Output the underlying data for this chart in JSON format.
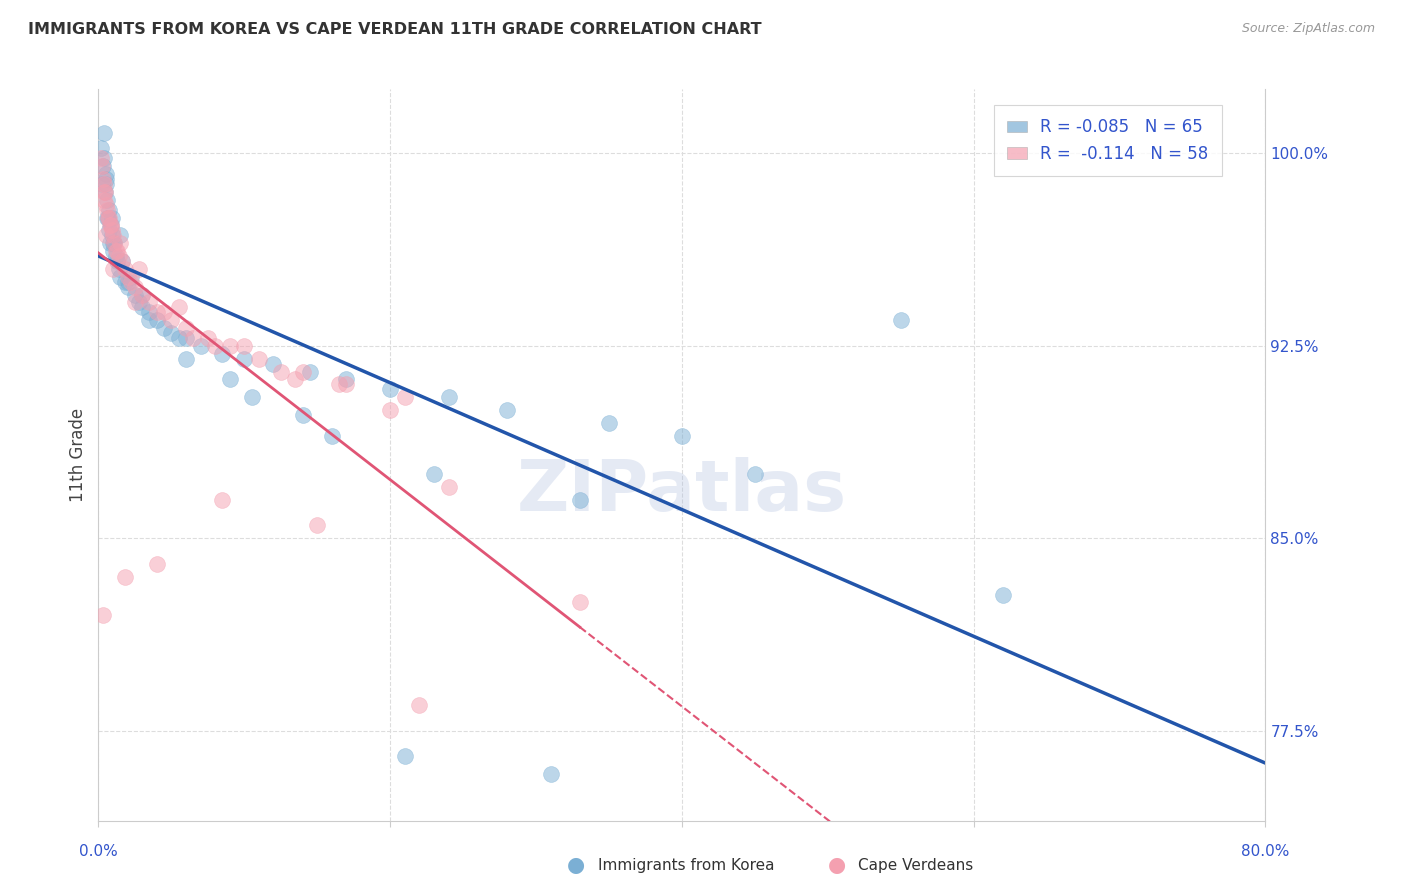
{
  "title": "IMMIGRANTS FROM KOREA VS CAPE VERDEAN 11TH GRADE CORRELATION CHART",
  "source": "Source: ZipAtlas.com",
  "ylabel": "11th Grade",
  "xlim": [
    0.0,
    80.0
  ],
  "ylim": [
    74.0,
    102.5
  ],
  "ytick_positions": [
    77.5,
    85.0,
    92.5,
    100.0
  ],
  "ytick_labels": [
    "77.5%",
    "85.0%",
    "92.5%",
    "100.0%"
  ],
  "legend_label1": "Immigrants from Korea",
  "legend_label2": "Cape Verdeans",
  "blue_color": "#7BAFD4",
  "pink_color": "#F4A0B0",
  "blue_line_color": "#2255AA",
  "pink_line_color": "#E05575",
  "text_color": "#3355CC",
  "watermark_text": "ZIPatlas",
  "blue_scatter_x": [
    0.2,
    0.3,
    0.35,
    0.4,
    0.45,
    0.5,
    0.55,
    0.6,
    0.65,
    0.7,
    0.75,
    0.8,
    0.85,
    0.9,
    0.95,
    1.0,
    1.1,
    1.2,
    1.3,
    1.4,
    1.5,
    1.6,
    1.8,
    2.0,
    2.2,
    2.5,
    2.8,
    3.0,
    3.5,
    4.0,
    4.5,
    5.0,
    6.0,
    7.0,
    8.5,
    10.0,
    12.0,
    14.5,
    17.0,
    20.0,
    24.0,
    28.0,
    35.0,
    40.0,
    45.0,
    55.0,
    62.0,
    0.25,
    0.6,
    1.0,
    2.0,
    3.5,
    6.0,
    10.5,
    16.0,
    23.0,
    33.0,
    0.5,
    1.5,
    3.0,
    5.5,
    9.0,
    14.0,
    21.0,
    31.0
  ],
  "blue_scatter_y": [
    100.2,
    99.5,
    100.8,
    99.8,
    98.5,
    99.2,
    98.8,
    98.2,
    97.5,
    97.8,
    97.0,
    96.5,
    97.2,
    96.8,
    97.5,
    96.2,
    96.5,
    96.0,
    95.8,
    95.5,
    95.2,
    95.8,
    95.0,
    94.8,
    95.2,
    94.5,
    94.2,
    94.0,
    93.8,
    93.5,
    93.2,
    93.0,
    92.8,
    92.5,
    92.2,
    92.0,
    91.8,
    91.5,
    91.2,
    90.8,
    90.5,
    90.0,
    89.5,
    89.0,
    87.5,
    93.5,
    82.8,
    98.8,
    97.5,
    96.5,
    95.0,
    93.5,
    92.0,
    90.5,
    89.0,
    87.5,
    86.5,
    99.0,
    96.8,
    94.5,
    92.8,
    91.2,
    89.8,
    76.5,
    75.8
  ],
  "pink_scatter_x": [
    0.2,
    0.25,
    0.3,
    0.4,
    0.45,
    0.5,
    0.6,
    0.7,
    0.8,
    0.9,
    1.0,
    1.1,
    1.2,
    1.4,
    1.6,
    1.8,
    2.0,
    2.5,
    3.0,
    3.5,
    4.0,
    5.0,
    6.0,
    7.5,
    9.0,
    11.0,
    14.0,
    17.0,
    21.0,
    0.35,
    0.65,
    1.3,
    2.2,
    4.5,
    8.0,
    13.5,
    20.0,
    0.4,
    0.85,
    1.5,
    2.8,
    5.5,
    10.0,
    16.5,
    24.0,
    33.0,
    0.55,
    1.0,
    2.5,
    6.5,
    12.5,
    0.3,
    1.8,
    4.0,
    8.5,
    15.0,
    22.0
  ],
  "pink_scatter_y": [
    99.8,
    99.5,
    99.0,
    98.8,
    98.5,
    98.0,
    97.8,
    97.5,
    97.2,
    97.0,
    96.8,
    96.5,
    96.2,
    96.0,
    95.8,
    95.5,
    95.2,
    94.8,
    94.5,
    94.2,
    93.8,
    93.5,
    93.2,
    92.8,
    92.5,
    92.0,
    91.5,
    91.0,
    90.5,
    98.5,
    97.5,
    96.2,
    95.0,
    93.8,
    92.5,
    91.2,
    90.0,
    98.2,
    97.2,
    96.5,
    95.5,
    94.0,
    92.5,
    91.0,
    87.0,
    82.5,
    96.8,
    95.5,
    94.2,
    92.8,
    91.5,
    82.0,
    83.5,
    84.0,
    86.5,
    85.5,
    78.5
  ]
}
